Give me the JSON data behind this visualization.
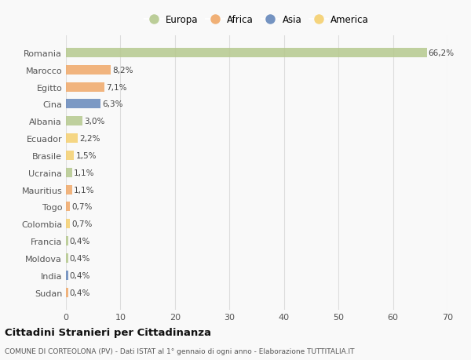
{
  "categories": [
    "Romania",
    "Marocco",
    "Egitto",
    "Cina",
    "Albania",
    "Ecuador",
    "Brasile",
    "Ucraina",
    "Mauritius",
    "Togo",
    "Colombia",
    "Francia",
    "Moldova",
    "India",
    "Sudan"
  ],
  "values": [
    66.2,
    8.2,
    7.1,
    6.3,
    3.0,
    2.2,
    1.5,
    1.1,
    1.1,
    0.7,
    0.7,
    0.4,
    0.4,
    0.4,
    0.4
  ],
  "labels": [
    "66,2%",
    "8,2%",
    "7,1%",
    "6,3%",
    "3,0%",
    "2,2%",
    "1,5%",
    "1,1%",
    "1,1%",
    "0,7%",
    "0,7%",
    "0,4%",
    "0,4%",
    "0,4%",
    "0,4%"
  ],
  "colors": [
    "#b5c98e",
    "#f0a868",
    "#f0a868",
    "#6688bb",
    "#b5c98e",
    "#f5d070",
    "#f5d070",
    "#b5c98e",
    "#f0a868",
    "#f0a868",
    "#f5d070",
    "#b5c98e",
    "#b5c98e",
    "#6688bb",
    "#f0a868"
  ],
  "legend": [
    {
      "label": "Europa",
      "color": "#b5c98e"
    },
    {
      "label": "Africa",
      "color": "#f0a868"
    },
    {
      "label": "Asia",
      "color": "#6688bb"
    },
    {
      "label": "America",
      "color": "#f5d070"
    }
  ],
  "xlim": [
    0,
    70
  ],
  "xticks": [
    0,
    10,
    20,
    30,
    40,
    50,
    60,
    70
  ],
  "title": "Cittadini Stranieri per Cittadinanza",
  "subtitle": "COMUNE DI CORTEOLONA (PV) - Dati ISTAT al 1° gennaio di ogni anno - Elaborazione TUTTITALIA.IT",
  "background_color": "#f9f9f9",
  "grid_color": "#dddddd",
  "bar_height": 0.55,
  "label_fontsize": 7.5,
  "ytick_fontsize": 8,
  "xtick_fontsize": 8,
  "legend_fontsize": 8.5
}
